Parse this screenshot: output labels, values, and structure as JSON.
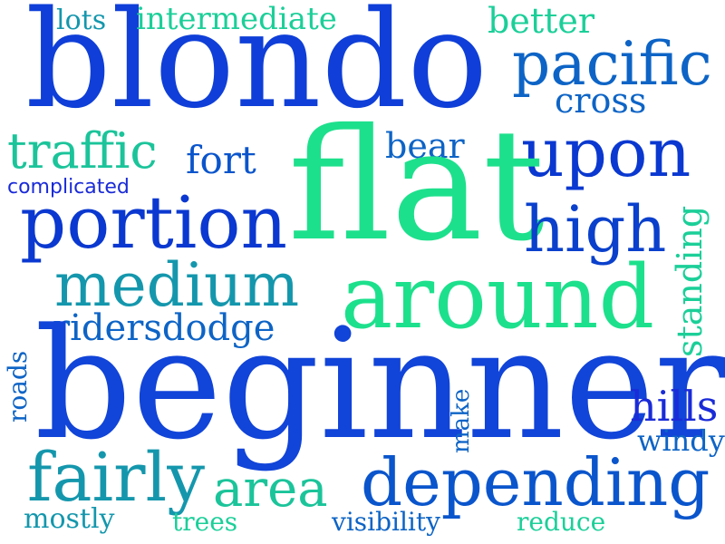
{
  "words": {
    "blondo": {
      "text": "blondo",
      "color": "#0f3fd8"
    },
    "flat": {
      "text": "flat",
      "color": "#1de08c"
    },
    "beginner": {
      "text": "beginner",
      "color": "#1144d8"
    },
    "around": {
      "text": "around",
      "color": "#1de08c"
    },
    "portion": {
      "text": "portion",
      "color": "#0a38d0"
    },
    "medium": {
      "text": "medium",
      "color": "#1497ad"
    },
    "depending": {
      "text": "depending",
      "color": "#0a55cc"
    },
    "pacific": {
      "text": "pacific",
      "color": "#0d64c6"
    },
    "upon": {
      "text": "upon",
      "color": "#0a38d0"
    },
    "high": {
      "text": "high",
      "color": "#0a40cc"
    },
    "traffic": {
      "text": "traffic",
      "color": "#1bc49a"
    },
    "fairly": {
      "text": "fairly",
      "color": "#1497ad"
    },
    "area": {
      "text": "area",
      "color": "#1bc49a"
    },
    "intermediate": {
      "text": "intermediate",
      "color": "#1bcf98"
    },
    "better": {
      "text": "better",
      "color": "#1bcf98"
    },
    "cross": {
      "text": "cross",
      "color": "#0d64c6"
    },
    "lots": {
      "text": "lots",
      "color": "#1497ad"
    },
    "fort": {
      "text": "fort",
      "color": "#0a55cc"
    },
    "bear": {
      "text": "bear",
      "color": "#0d64c6"
    },
    "complicated": {
      "text": "complicated",
      "color": "#1a2bd8"
    },
    "ridersdodge": {
      "text": "ridersdodge",
      "color": "#0d64c6"
    },
    "standing": {
      "text": "standing",
      "color": "#1bcf98"
    },
    "roads": {
      "text": "roads",
      "color": "#0d64c6"
    },
    "make": {
      "text": "make",
      "color": "#0d64c6"
    },
    "hills": {
      "text": "hills",
      "color": "#1a2bd8"
    },
    "windy": {
      "text": "windy",
      "color": "#0d64c6"
    },
    "mostly": {
      "text": "mostly",
      "color": "#1497ad"
    },
    "trees": {
      "text": "trees",
      "color": "#1bcf98"
    },
    "visibility": {
      "text": "visibility",
      "color": "#0d64c6"
    },
    "reduce": {
      "text": "reduce",
      "color": "#1bcf98"
    }
  }
}
